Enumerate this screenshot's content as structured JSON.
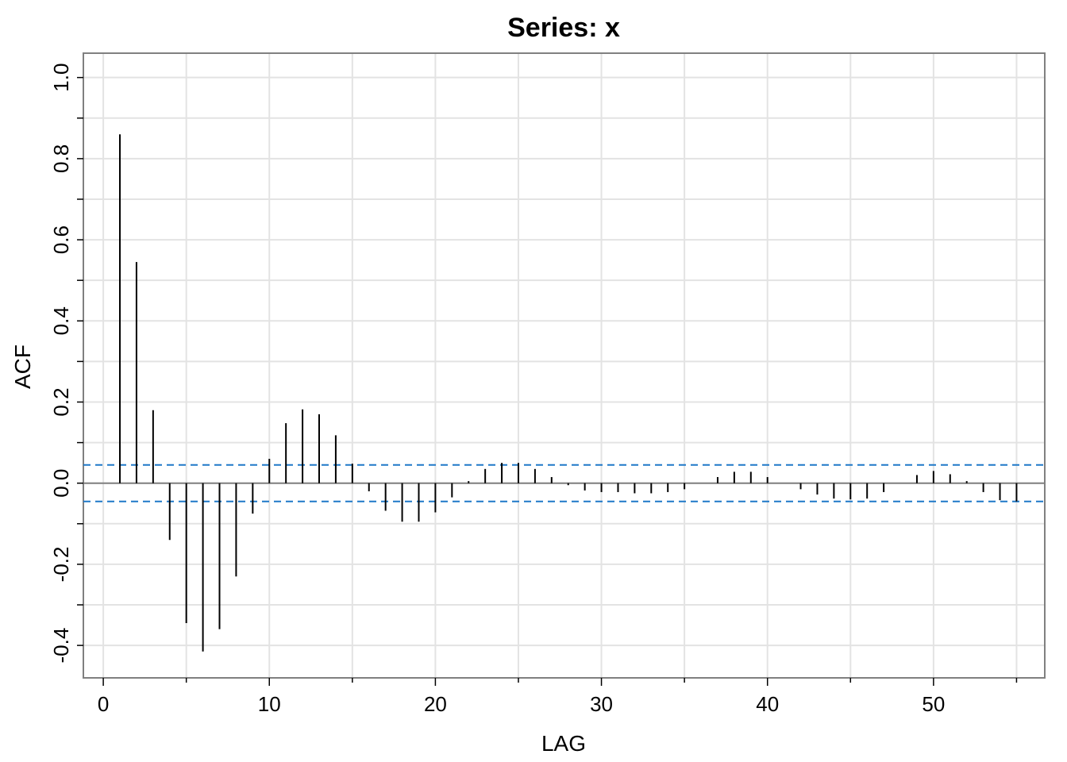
{
  "colors": {
    "bars": "#000000",
    "ci_lines": "#1f78c8",
    "zero_line": "#808080",
    "grid": "#e3e3e3",
    "frame": "#808080"
  },
  "chart_data": {
    "type": "bar",
    "title": "Series:  x",
    "xlabel": "LAG",
    "ylabel": "ACF",
    "xlim": [
      -1.2,
      56.7
    ],
    "ylim": [
      -0.48,
      1.06
    ],
    "xticks": [
      0,
      10,
      20,
      30,
      40,
      50
    ],
    "xtick_labels": [
      "0",
      "10",
      "20",
      "30",
      "40",
      "50"
    ],
    "yticks": [
      -0.4,
      -0.2,
      0.0,
      0.2,
      0.4,
      0.6,
      0.8,
      1.0
    ],
    "ytick_labels": [
      "-0.4",
      "-0.2",
      "0.0",
      "0.2",
      "0.4",
      "0.6",
      "0.8",
      "1.0"
    ],
    "grid": true,
    "confidence_bounds": [
      0.045,
      -0.045
    ],
    "lags": [
      1,
      2,
      3,
      4,
      5,
      6,
      7,
      8,
      9,
      10,
      11,
      12,
      13,
      14,
      15,
      16,
      17,
      18,
      19,
      20,
      21,
      22,
      23,
      24,
      25,
      26,
      27,
      28,
      29,
      30,
      31,
      32,
      33,
      34,
      35,
      36,
      37,
      38,
      39,
      40,
      41,
      42,
      43,
      44,
      45,
      46,
      47,
      48,
      49,
      50,
      51,
      52,
      53,
      54,
      55
    ],
    "values": [
      0.86,
      0.545,
      0.18,
      -0.14,
      -0.345,
      -0.415,
      -0.36,
      -0.23,
      -0.075,
      0.06,
      0.148,
      0.182,
      0.17,
      0.118,
      0.048,
      -0.02,
      -0.068,
      -0.095,
      -0.095,
      -0.072,
      -0.035,
      0.005,
      0.035,
      0.05,
      0.05,
      0.035,
      0.015,
      -0.005,
      -0.018,
      -0.022,
      -0.022,
      -0.025,
      -0.025,
      -0.022,
      -0.015,
      0.0,
      0.015,
      0.028,
      0.028,
      0.015,
      0.0,
      -0.015,
      -0.028,
      -0.038,
      -0.04,
      -0.038,
      -0.022,
      0.0,
      0.02,
      0.03,
      0.022,
      0.005,
      -0.022,
      -0.042,
      -0.045
    ]
  }
}
